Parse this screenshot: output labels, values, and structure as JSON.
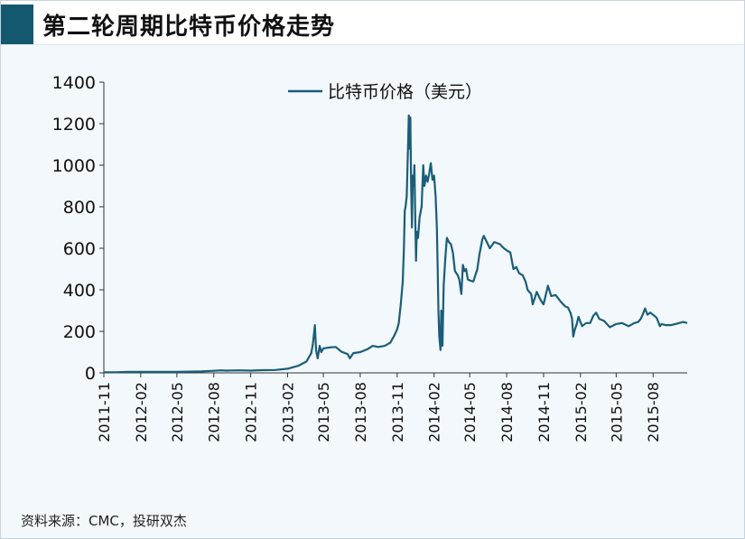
{
  "page": {
    "title": "第二轮周期比特币价格走势",
    "source": "资料来源：CMC，投研双杰"
  },
  "colors": {
    "accent": "#14586f",
    "line": "#1a5d79",
    "background": "#f2f8fc"
  },
  "chart_data": {
    "type": "line",
    "legend_position": "top-center",
    "grid": false,
    "ylim": [
      0,
      1400
    ],
    "y_ticks": [
      "0",
      "200",
      "400",
      "600",
      "800",
      "1000",
      "1200",
      "1400"
    ],
    "x_tick_labels": [
      "2011-11",
      "2012-02",
      "2012-05",
      "2012-08",
      "2012-11",
      "2013-02",
      "2013-05",
      "2013-08",
      "2013-11",
      "2014-02",
      "2014-05",
      "2014-08",
      "2014-11",
      "2015-02",
      "2015-05",
      "2015-08"
    ],
    "x_range": [
      "2011-11-01",
      "2015-10-25"
    ],
    "series": [
      {
        "name": "比特币价格（美元）",
        "points": [
          [
            "2011-11-01",
            3
          ],
          [
            "2011-12-01",
            3
          ],
          [
            "2012-01-01",
            5
          ],
          [
            "2012-02-01",
            5
          ],
          [
            "2012-03-01",
            5
          ],
          [
            "2012-04-01",
            5
          ],
          [
            "2012-05-01",
            5
          ],
          [
            "2012-06-01",
            6
          ],
          [
            "2012-07-01",
            7
          ],
          [
            "2012-08-01",
            10
          ],
          [
            "2012-08-20",
            12
          ],
          [
            "2012-09-01",
            11
          ],
          [
            "2012-10-01",
            12
          ],
          [
            "2012-11-01",
            11
          ],
          [
            "2012-12-01",
            13
          ],
          [
            "2013-01-01",
            14
          ],
          [
            "2013-02-01",
            20
          ],
          [
            "2013-03-01",
            35
          ],
          [
            "2013-03-20",
            55
          ],
          [
            "2013-04-01",
            95
          ],
          [
            "2013-04-05",
            140
          ],
          [
            "2013-04-10",
            230
          ],
          [
            "2013-04-13",
            110
          ],
          [
            "2013-04-17",
            70
          ],
          [
            "2013-04-22",
            130
          ],
          [
            "2013-04-26",
            100
          ],
          [
            "2013-05-01",
            118
          ],
          [
            "2013-05-15",
            122
          ],
          [
            "2013-06-01",
            125
          ],
          [
            "2013-06-15",
            102
          ],
          [
            "2013-07-01",
            90
          ],
          [
            "2013-07-06",
            70
          ],
          [
            "2013-07-15",
            95
          ],
          [
            "2013-08-01",
            100
          ],
          [
            "2013-08-20",
            115
          ],
          [
            "2013-09-01",
            130
          ],
          [
            "2013-09-15",
            125
          ],
          [
            "2013-10-01",
            130
          ],
          [
            "2013-10-15",
            145
          ],
          [
            "2013-10-25",
            180
          ],
          [
            "2013-11-01",
            210
          ],
          [
            "2013-11-05",
            240
          ],
          [
            "2013-11-10",
            330
          ],
          [
            "2013-11-15",
            440
          ],
          [
            "2013-11-18",
            600
          ],
          [
            "2013-11-20",
            780
          ],
          [
            "2013-11-22",
            800
          ],
          [
            "2013-11-25",
            850
          ],
          [
            "2013-11-27",
            1000
          ],
          [
            "2013-11-29",
            1150
          ],
          [
            "2013-11-30",
            1240
          ],
          [
            "2013-12-02",
            1080
          ],
          [
            "2013-12-04",
            1230
          ],
          [
            "2013-12-06",
            900
          ],
          [
            "2013-12-08",
            700
          ],
          [
            "2013-12-10",
            950
          ],
          [
            "2013-12-12",
            900
          ],
          [
            "2013-12-14",
            1000
          ],
          [
            "2013-12-16",
            760
          ],
          [
            "2013-12-18",
            540
          ],
          [
            "2013-12-20",
            680
          ],
          [
            "2013-12-23",
            650
          ],
          [
            "2013-12-27",
            750
          ],
          [
            "2014-01-01",
            800
          ],
          [
            "2014-01-05",
            1000
          ],
          [
            "2014-01-08",
            900
          ],
          [
            "2014-01-12",
            950
          ],
          [
            "2014-01-16",
            920
          ],
          [
            "2014-01-20",
            960
          ],
          [
            "2014-01-24",
            1010
          ],
          [
            "2014-01-28",
            930
          ],
          [
            "2014-02-01",
            950
          ],
          [
            "2014-02-05",
            850
          ],
          [
            "2014-02-08",
            700
          ],
          [
            "2014-02-10",
            500
          ],
          [
            "2014-02-12",
            300
          ],
          [
            "2014-02-14",
            180
          ],
          [
            "2014-02-17",
            110
          ],
          [
            "2014-02-19",
            300
          ],
          [
            "2014-02-22",
            130
          ],
          [
            "2014-02-25",
            420
          ],
          [
            "2014-03-01",
            550
          ],
          [
            "2014-03-05",
            650
          ],
          [
            "2014-03-10",
            630
          ],
          [
            "2014-03-15",
            620
          ],
          [
            "2014-03-20",
            580
          ],
          [
            "2014-03-25",
            490
          ],
          [
            "2014-04-01",
            470
          ],
          [
            "2014-04-05",
            450
          ],
          [
            "2014-04-10",
            380
          ],
          [
            "2014-04-14",
            520
          ],
          [
            "2014-04-18",
            490
          ],
          [
            "2014-04-22",
            500
          ],
          [
            "2014-04-26",
            450
          ],
          [
            "2014-05-01",
            445
          ],
          [
            "2014-05-10",
            440
          ],
          [
            "2014-05-20",
            500
          ],
          [
            "2014-05-25",
            570
          ],
          [
            "2014-06-01",
            640
          ],
          [
            "2014-06-05",
            660
          ],
          [
            "2014-06-10",
            640
          ],
          [
            "2014-06-20",
            600
          ],
          [
            "2014-07-01",
            630
          ],
          [
            "2014-07-15",
            620
          ],
          [
            "2014-07-25",
            600
          ],
          [
            "2014-08-01",
            590
          ],
          [
            "2014-08-10",
            580
          ],
          [
            "2014-08-18",
            500
          ],
          [
            "2014-08-25",
            510
          ],
          [
            "2014-09-01",
            480
          ],
          [
            "2014-09-10",
            470
          ],
          [
            "2014-09-17",
            440
          ],
          [
            "2014-09-22",
            400
          ],
          [
            "2014-10-01",
            380
          ],
          [
            "2014-10-05",
            330
          ],
          [
            "2014-10-15",
            390
          ],
          [
            "2014-10-25",
            350
          ],
          [
            "2014-11-01",
            330
          ],
          [
            "2014-11-12",
            420
          ],
          [
            "2014-11-20",
            370
          ],
          [
            "2014-12-01",
            375
          ],
          [
            "2014-12-15",
            340
          ],
          [
            "2014-12-25",
            320
          ],
          [
            "2015-01-01",
            315
          ],
          [
            "2015-01-07",
            290
          ],
          [
            "2015-01-11",
            260
          ],
          [
            "2015-01-14",
            175
          ],
          [
            "2015-01-18",
            210
          ],
          [
            "2015-01-22",
            230
          ],
          [
            "2015-01-27",
            270
          ],
          [
            "2015-02-05",
            225
          ],
          [
            "2015-02-15",
            240
          ],
          [
            "2015-02-25",
            240
          ],
          [
            "2015-03-05",
            275
          ],
          [
            "2015-03-12",
            290
          ],
          [
            "2015-03-20",
            260
          ],
          [
            "2015-04-01",
            250
          ],
          [
            "2015-04-15",
            220
          ],
          [
            "2015-05-01",
            235
          ],
          [
            "2015-05-15",
            240
          ],
          [
            "2015-06-01",
            225
          ],
          [
            "2015-06-15",
            240
          ],
          [
            "2015-06-25",
            245
          ],
          [
            "2015-07-01",
            260
          ],
          [
            "2015-07-05",
            275
          ],
          [
            "2015-07-12",
            310
          ],
          [
            "2015-07-18",
            280
          ],
          [
            "2015-07-25",
            290
          ],
          [
            "2015-08-01",
            280
          ],
          [
            "2015-08-10",
            265
          ],
          [
            "2015-08-18",
            225
          ],
          [
            "2015-08-22",
            235
          ],
          [
            "2015-09-01",
            230
          ],
          [
            "2015-09-15",
            230
          ],
          [
            "2015-10-01",
            238
          ],
          [
            "2015-10-15",
            245
          ],
          [
            "2015-10-25",
            240
          ]
        ]
      }
    ]
  }
}
